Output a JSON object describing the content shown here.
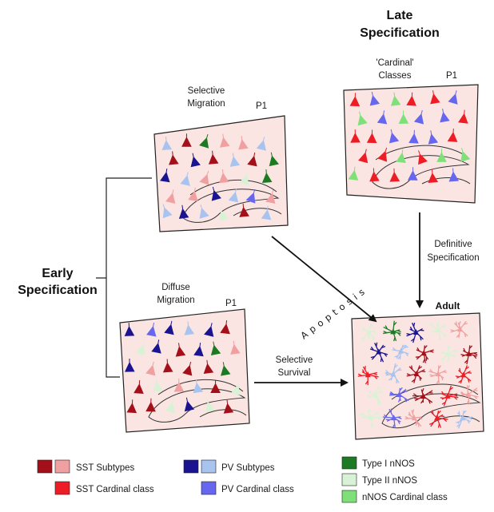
{
  "headings": {
    "late_line1": "Late",
    "late_line2": "Specification",
    "early_line1": "Early",
    "early_line2": "Specification"
  },
  "panels": {
    "selective": {
      "label_line1": "Selective",
      "label_line2": "Migration",
      "age": "P1"
    },
    "diffuse": {
      "label_line1": "Diffuse",
      "label_line2": "Migration",
      "age": "P1"
    },
    "cardinal": {
      "label_line1": "'Cardinal'",
      "label_line2": "Classes",
      "age": "P1"
    },
    "adult": {
      "label": "Adult"
    }
  },
  "arrows": {
    "apoptosis": "Apoptosis",
    "definitive_line1": "Definitive",
    "definitive_line2": "Specification",
    "survival_line1": "Selective",
    "survival_line2": "Survival"
  },
  "legend": {
    "sst_subtypes": "SST Subtypes",
    "sst_cardinal": "SST Cardinal class",
    "pv_subtypes": "PV Subtypes",
    "pv_cardinal": "PV Cardinal class",
    "type1": "Type I nNOS",
    "type2": "Type II nNOS",
    "nnos_cardinal": "nNOS Cardinal class"
  },
  "colors": {
    "sst_dark": "#a4101a",
    "sst_light": "#f0a0a0",
    "sst_cardinal": "#ee1c24",
    "pv_dark": "#1a1490",
    "pv_light": "#a9c3ef",
    "pv_cardinal": "#6666ee",
    "type1_nnos": "#1c7a22",
    "type2_nnos": "#d7f2d4",
    "nnos_cardinal": "#7fe07a",
    "tissue": "#fbe5e3"
  }
}
